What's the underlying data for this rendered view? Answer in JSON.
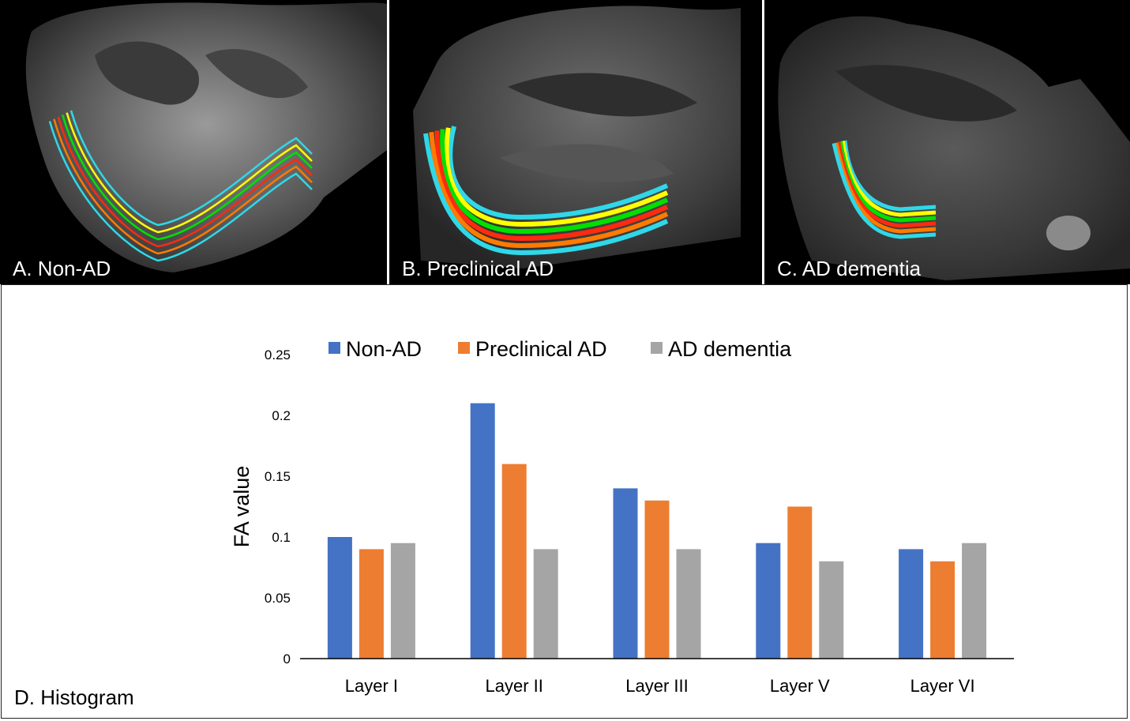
{
  "panels": [
    {
      "label": "A. Non-AD"
    },
    {
      "label": "B. Preclinical AD"
    },
    {
      "label": "C. AD dementia"
    }
  ],
  "layer_colors": [
    "#2fd8e8",
    "#ffff00",
    "#00e000",
    "#ff2a10",
    "#ff7a00"
  ],
  "histogram_label": "D. Histogram",
  "chart_data": {
    "type": "bar",
    "title": "",
    "xlabel": "",
    "ylabel": "FA value",
    "ylim": [
      0,
      0.25
    ],
    "yticks": [
      0,
      0.05,
      0.1,
      0.15,
      0.2,
      0.25
    ],
    "ytick_labels": [
      "0",
      "0.05",
      "0.1",
      "0.15",
      "0.2",
      "0.25"
    ],
    "categories": [
      "Layer I",
      "Layer II",
      "Layer III",
      "Layer V",
      "Layer VI"
    ],
    "series": [
      {
        "name": "Non-AD",
        "color": "#4472c4",
        "values": [
          0.1,
          0.21,
          0.14,
          0.095,
          0.09
        ]
      },
      {
        "name": "Preclinical AD",
        "color": "#ed7d31",
        "values": [
          0.09,
          0.16,
          0.13,
          0.125,
          0.08
        ]
      },
      {
        "name": "AD dementia",
        "color": "#a5a5a5",
        "values": [
          0.095,
          0.09,
          0.09,
          0.08,
          0.095
        ]
      }
    ],
    "legend_position": "top"
  }
}
